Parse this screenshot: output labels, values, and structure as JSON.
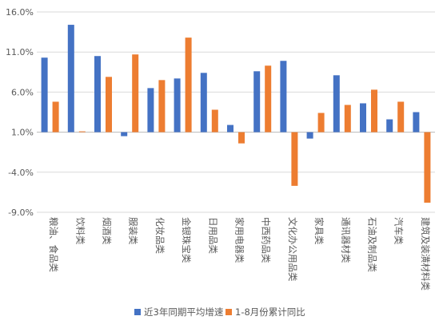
{
  "chart_data": {
    "type": "bar",
    "categories": [
      "粮油、食品类",
      "饮料类",
      "烟酒类",
      "服装类",
      "化妆品类",
      "金银珠宝类",
      "日用品类",
      "家用电器类",
      "中西药品类",
      "文化办公用品类",
      "家具类",
      "通讯器材类",
      "石油及制品类",
      "汽车类",
      "建筑及装潢材料类"
    ],
    "series": [
      {
        "name": "近3年同期平均增速",
        "color": "#4472C4",
        "values": [
          10.3,
          14.4,
          10.5,
          0.5,
          6.5,
          7.7,
          8.4,
          1.9,
          8.6,
          9.9,
          0.2,
          8.1,
          4.6,
          2.6,
          3.5
        ]
      },
      {
        "name": "1-8月份累计同比",
        "color": "#ED7D31",
        "values": [
          4.8,
          1.1,
          7.9,
          10.7,
          7.5,
          12.8,
          3.8,
          -0.4,
          9.3,
          -5.7,
          3.4,
          4.4,
          6.3,
          4.8,
          -7.8
        ]
      }
    ],
    "y_ticks": [
      "16.0%",
      "11.0%",
      "6.0%",
      "1.0%",
      "-4.0%",
      "-9.0%"
    ],
    "ylim": [
      -9,
      16
    ],
    "grid": true,
    "legend_position": "bottom"
  }
}
